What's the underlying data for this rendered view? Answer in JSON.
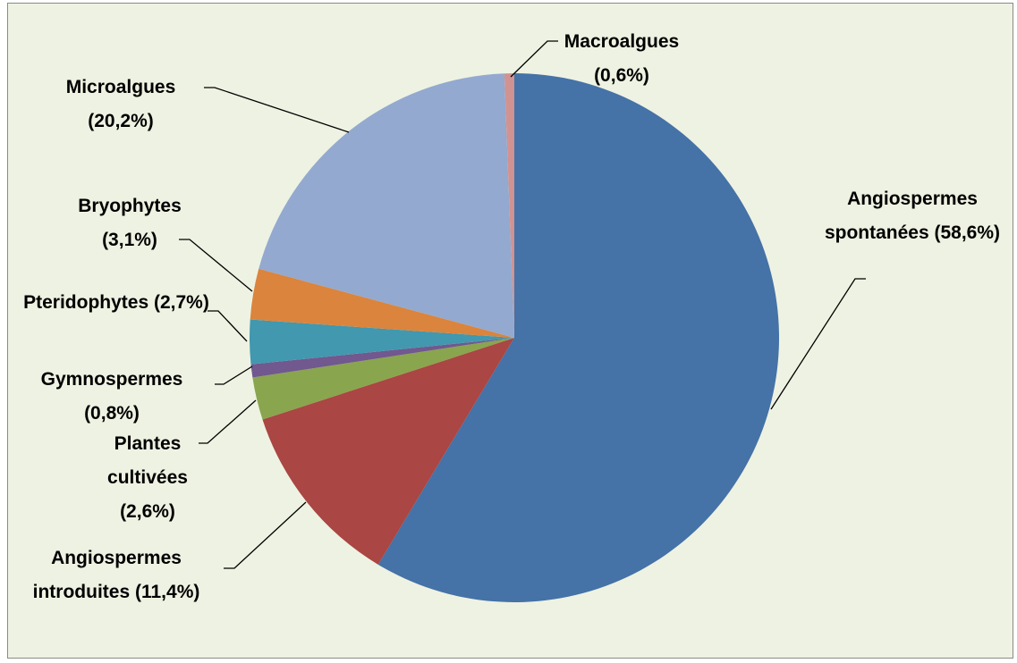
{
  "chart_data": {
    "type": "pie",
    "categories": [
      "Angiospermes spontanées",
      "Angiospermes introduites",
      "Plantes cultivées",
      "Gymnospermes",
      "Pteridophytes",
      "Bryophytes",
      "Microalgues",
      "Macroalgues"
    ],
    "values": [
      58.6,
      11.4,
      2.6,
      0.8,
      2.7,
      3.1,
      20.2,
      0.6
    ],
    "value_labels": [
      "(58,6%)",
      "(11,4%)",
      "(2,6%)",
      "(0,8%)",
      "(2,7%)",
      "(3,1%)",
      "(20,2%)",
      "(0,6%)"
    ],
    "colors": [
      "#4572a7",
      "#aa4643",
      "#89a54e",
      "#71588f",
      "#4198af",
      "#db843d",
      "#93a9cf",
      "#d19392"
    ]
  }
}
